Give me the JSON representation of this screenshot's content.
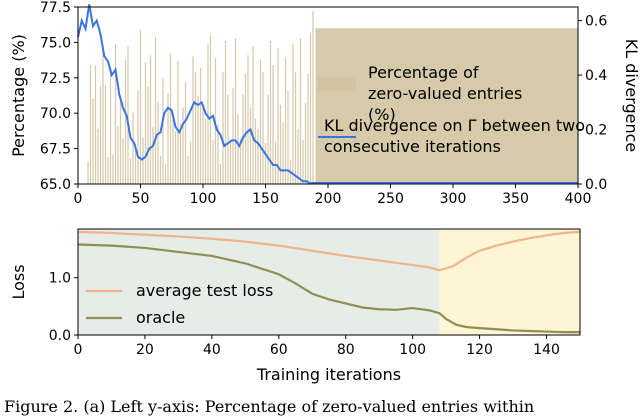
{
  "chart_data": [
    {
      "type": "bar",
      "title": "",
      "xlabel": "",
      "ylabel": "Percentage (%)",
      "y2label": "KL divergence",
      "xlim": [
        0,
        400
      ],
      "ylim": [
        65.0,
        77.5
      ],
      "y2lim": [
        0,
        0.65
      ],
      "xticks": [
        "0",
        "50",
        "100",
        "150",
        "200",
        "250",
        "300",
        "350",
        "400"
      ],
      "yticks": [
        "65.0",
        "67.5",
        "70.0",
        "72.5",
        "75.0",
        "77.5"
      ],
      "y2ticks": [
        "0.0",
        "0.2",
        "0.4",
        "0.6"
      ],
      "legend_position": "right",
      "series": [
        {
          "name": "Percentage of zero-valued entries (%)",
          "type": "bar",
          "axis": "left",
          "color": "#d2c4a1",
          "x": [
            8,
            10,
            12,
            14,
            16,
            18,
            20,
            22,
            24,
            26,
            28,
            30,
            32,
            34,
            36,
            38,
            40,
            42,
            44,
            46,
            48,
            50,
            52,
            54,
            56,
            58,
            60,
            62,
            64,
            66,
            68,
            70,
            72,
            74,
            76,
            78,
            80,
            82,
            84,
            86,
            88,
            90,
            92,
            94,
            96,
            98,
            100,
            102,
            104,
            106,
            108,
            110,
            112,
            114,
            116,
            118,
            120,
            122,
            124,
            126,
            128,
            130,
            132,
            134,
            136,
            138,
            140,
            142,
            144,
            146,
            148,
            150,
            152,
            154,
            156,
            158,
            160,
            162,
            164,
            166,
            168,
            170,
            172,
            174,
            176,
            178,
            180,
            182,
            184,
            186,
            188
          ],
          "values": [
            66.6,
            73.4,
            71.0,
            73.4,
            68.9,
            71.9,
            74.5,
            72.0,
            66.9,
            73.2,
            67.1,
            74.9,
            69.1,
            71.0,
            68.2,
            73.8,
            74.7,
            66.8,
            70.1,
            67.3,
            71.6,
            75.9,
            68.3,
            73.6,
            71.9,
            74.1,
            69.0,
            75.4,
            70.8,
            67.0,
            72.5,
            66.4,
            71.4,
            74.2,
            69.8,
            68.7,
            73.7,
            69.3,
            70.4,
            72.2,
            67.0,
            68.0,
            74.0,
            72.9,
            71.2,
            73.2,
            70.6,
            69.6,
            74.9,
            75.5,
            68.1,
            73.9,
            69.2,
            66.4,
            72.9,
            75.1,
            71.3,
            67.9,
            71.8,
            75.3,
            69.9,
            68.2,
            71.3,
            72.8,
            74.1,
            70.4,
            74.7,
            69.6,
            68.9,
            73.8,
            72.9,
            67.9,
            71.3,
            75.1,
            73.4,
            68.0,
            74.6,
            70.6,
            69.3,
            73.9,
            71.6,
            66.7,
            74.9,
            72.9,
            68.9,
            75.3,
            68.1,
            70.7,
            72.8,
            75.7,
            77.2
          ]
        },
        {
          "name": "Percentage of zero-valued entries (%)",
          "type": "bar",
          "axis": "left",
          "color": "#d2c4a1",
          "x_range": [
            190,
            400
          ],
          "value": 76.0
        },
        {
          "name": "KL divergence on Γ between two consecutive iterations",
          "type": "line",
          "axis": "right",
          "color": "#3b73e0",
          "x": [
            0,
            3,
            6,
            9,
            12,
            15,
            18,
            21,
            24,
            27,
            30,
            33,
            36,
            39,
            42,
            45,
            48,
            51,
            54,
            57,
            60,
            63,
            66,
            69,
            72,
            75,
            78,
            81,
            84,
            87,
            90,
            93,
            96,
            99,
            102,
            105,
            108,
            111,
            114,
            117,
            120,
            123,
            126,
            129,
            132,
            135,
            138,
            141,
            144,
            147,
            150,
            153,
            156,
            159,
            162,
            165,
            168,
            171,
            174,
            177,
            180,
            183,
            186
          ],
          "values": [
            0.54,
            0.6,
            0.57,
            0.66,
            0.58,
            0.6,
            0.55,
            0.47,
            0.45,
            0.4,
            0.42,
            0.33,
            0.28,
            0.25,
            0.17,
            0.15,
            0.1,
            0.09,
            0.1,
            0.13,
            0.14,
            0.18,
            0.19,
            0.26,
            0.28,
            0.27,
            0.21,
            0.19,
            0.22,
            0.24,
            0.27,
            0.3,
            0.29,
            0.3,
            0.26,
            0.24,
            0.25,
            0.2,
            0.18,
            0.14,
            0.15,
            0.16,
            0.16,
            0.14,
            0.17,
            0.19,
            0.2,
            0.16,
            0.15,
            0.13,
            0.11,
            0.09,
            0.07,
            0.07,
            0.05,
            0.05,
            0.05,
            0.04,
            0.03,
            0.02,
            0.01,
            0.01,
            0.0
          ]
        }
      ]
    },
    {
      "type": "line",
      "title": "",
      "xlabel": "Training iterations",
      "ylabel": "Loss",
      "xlim": [
        0,
        150
      ],
      "ylim": [
        0,
        1.85
      ],
      "xticks": [
        "0",
        "20",
        "40",
        "60",
        "80",
        "100",
        "120",
        "140"
      ],
      "yticks": [
        "0.0",
        "1.0"
      ],
      "legend_position": "lower-left",
      "shaded_regions": [
        {
          "x": [
            0,
            108
          ],
          "color": "#e6ede9"
        },
        {
          "x": [
            108,
            150
          ],
          "color": "#fdf5d3"
        }
      ],
      "series": [
        {
          "name": "average test loss",
          "color": "#f2b38c",
          "x": [
            0,
            10,
            20,
            30,
            40,
            50,
            60,
            70,
            80,
            90,
            100,
            105,
            108,
            112,
            116,
            120,
            125,
            130,
            135,
            140,
            145,
            150
          ],
          "values": [
            1.8,
            1.78,
            1.75,
            1.72,
            1.68,
            1.63,
            1.56,
            1.47,
            1.38,
            1.3,
            1.22,
            1.18,
            1.13,
            1.2,
            1.35,
            1.47,
            1.56,
            1.63,
            1.69,
            1.74,
            1.78,
            1.8
          ]
        },
        {
          "name": "oracle",
          "color": "#8f8f52",
          "x": [
            0,
            10,
            20,
            30,
            40,
            50,
            60,
            65,
            70,
            75,
            80,
            85,
            90,
            95,
            100,
            105,
            108,
            110,
            113,
            116,
            120,
            125,
            130,
            135,
            140,
            145,
            150
          ],
          "values": [
            1.58,
            1.56,
            1.52,
            1.45,
            1.38,
            1.25,
            1.06,
            0.9,
            0.72,
            0.62,
            0.55,
            0.48,
            0.45,
            0.44,
            0.47,
            0.43,
            0.38,
            0.28,
            0.18,
            0.14,
            0.12,
            0.1,
            0.08,
            0.07,
            0.06,
            0.05,
            0.05
          ]
        }
      ]
    }
  ],
  "caption": {
    "text": "Figure 2. (a) Left y-axis: Percentage of zero-valued entries within"
  }
}
